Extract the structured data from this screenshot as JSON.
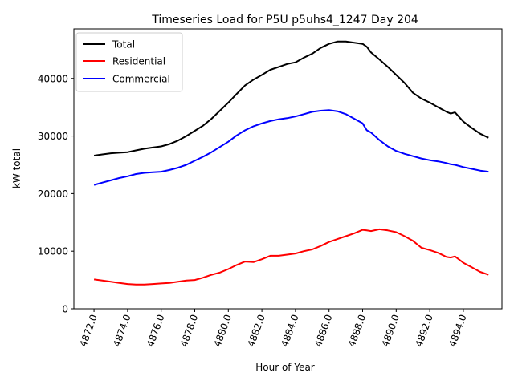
{
  "chart_data": {
    "type": "line",
    "title": "Timeseries Load for P5U p5uhs4_1247  Day 204",
    "xlabel": "Hour of Year",
    "ylabel": "kW total",
    "xlim": [
      4870.8,
      4896.3
    ],
    "ylim": [
      0,
      48600
    ],
    "x_ticks": [
      4872,
      4874,
      4876,
      4878,
      4880,
      4882,
      4884,
      4886,
      4888,
      4890,
      4892,
      4894
    ],
    "x_tick_labels": [
      "4872.0",
      "4874.0",
      "4876.0",
      "4878.0",
      "4880.0",
      "4882.0",
      "4884.0",
      "4886.0",
      "4888.0",
      "4890.0",
      "4892.0",
      "4894.0"
    ],
    "y_ticks": [
      0,
      10000,
      20000,
      30000,
      40000
    ],
    "y_tick_labels": [
      "0",
      "10000",
      "20000",
      "30000",
      "40000"
    ],
    "legend_position": "top-left",
    "series": [
      {
        "name": "Total",
        "color": "#000000",
        "x": [
          4872.0,
          4872.5,
          4873.0,
          4873.5,
          4874.0,
          4874.5,
          4875.0,
          4875.5,
          4876.0,
          4876.5,
          4877.0,
          4877.5,
          4878.0,
          4878.5,
          4879.0,
          4879.5,
          4880.0,
          4880.5,
          4881.0,
          4881.5,
          4882.0,
          4882.5,
          4883.0,
          4883.5,
          4884.0,
          4884.5,
          4885.0,
          4885.5,
          4886.0,
          4886.5,
          4887.0,
          4887.5,
          4888.0,
          4888.25,
          4888.5,
          4889.0,
          4889.5,
          4890.0,
          4890.5,
          4891.0,
          4891.5,
          4892.0,
          4892.5,
          4893.0,
          4893.25,
          4893.5,
          4894.0,
          4894.5,
          4895.0,
          4895.5
        ],
        "values": [
          26600,
          26800,
          27000,
          27100,
          27200,
          27500,
          27800,
          28000,
          28200,
          28600,
          29200,
          30000,
          30900,
          31800,
          33000,
          34400,
          35800,
          37300,
          38800,
          39800,
          40600,
          41500,
          42000,
          42500,
          42800,
          43600,
          44300,
          45300,
          46000,
          46400,
          46400,
          46200,
          46000,
          45500,
          44500,
          43300,
          42000,
          40600,
          39200,
          37500,
          36500,
          35800,
          35000,
          34200,
          33900,
          34100,
          32500,
          31400,
          30400,
          29700
        ]
      },
      {
        "name": "Residential",
        "color": "#ff0000",
        "x": [
          4872.0,
          4872.5,
          4873.0,
          4873.5,
          4874.0,
          4874.5,
          4875.0,
          4875.5,
          4876.0,
          4876.5,
          4877.0,
          4877.5,
          4878.0,
          4878.5,
          4879.0,
          4879.5,
          4880.0,
          4880.5,
          4881.0,
          4881.5,
          4882.0,
          4882.5,
          4883.0,
          4883.5,
          4884.0,
          4884.5,
          4885.0,
          4885.5,
          4886.0,
          4886.5,
          4887.0,
          4887.5,
          4888.0,
          4888.25,
          4888.5,
          4889.0,
          4889.5,
          4890.0,
          4890.5,
          4891.0,
          4891.5,
          4892.0,
          4892.5,
          4893.0,
          4893.25,
          4893.5,
          4894.0,
          4894.5,
          4895.0,
          4895.5
        ],
        "values": [
          5100,
          4900,
          4700,
          4500,
          4300,
          4200,
          4200,
          4300,
          4400,
          4500,
          4700,
          4900,
          5000,
          5400,
          5900,
          6300,
          6900,
          7600,
          8200,
          8100,
          8600,
          9200,
          9200,
          9400,
          9600,
          10000,
          10300,
          10900,
          11600,
          12100,
          12600,
          13100,
          13700,
          13600,
          13500,
          13800,
          13600,
          13300,
          12600,
          11800,
          10600,
          10200,
          9700,
          9000,
          8900,
          9100,
          8000,
          7200,
          6400,
          5900
        ]
      },
      {
        "name": "Commercial",
        "color": "#0000ff",
        "x": [
          4872.0,
          4872.5,
          4873.0,
          4873.5,
          4874.0,
          4874.5,
          4875.0,
          4875.5,
          4876.0,
          4876.5,
          4877.0,
          4877.5,
          4878.0,
          4878.5,
          4879.0,
          4879.5,
          4880.0,
          4880.5,
          4881.0,
          4881.5,
          4882.0,
          4882.5,
          4883.0,
          4883.5,
          4884.0,
          4884.5,
          4885.0,
          4885.5,
          4886.0,
          4886.5,
          4887.0,
          4887.5,
          4888.0,
          4888.25,
          4888.5,
          4889.0,
          4889.5,
          4890.0,
          4890.5,
          4891.0,
          4891.5,
          4892.0,
          4892.5,
          4893.0,
          4893.25,
          4893.5,
          4894.0,
          4894.5,
          4895.0,
          4895.5
        ],
        "values": [
          21500,
          21900,
          22300,
          22700,
          23000,
          23400,
          23600,
          23700,
          23800,
          24100,
          24500,
          25000,
          25700,
          26400,
          27200,
          28100,
          29000,
          30100,
          31000,
          31700,
          32200,
          32600,
          32900,
          33100,
          33400,
          33800,
          34200,
          34400,
          34500,
          34300,
          33800,
          33000,
          32200,
          31000,
          30600,
          29300,
          28200,
          27400,
          26900,
          26500,
          26100,
          25800,
          25600,
          25300,
          25100,
          25000,
          24600,
          24300,
          24000,
          23800
        ]
      }
    ]
  }
}
